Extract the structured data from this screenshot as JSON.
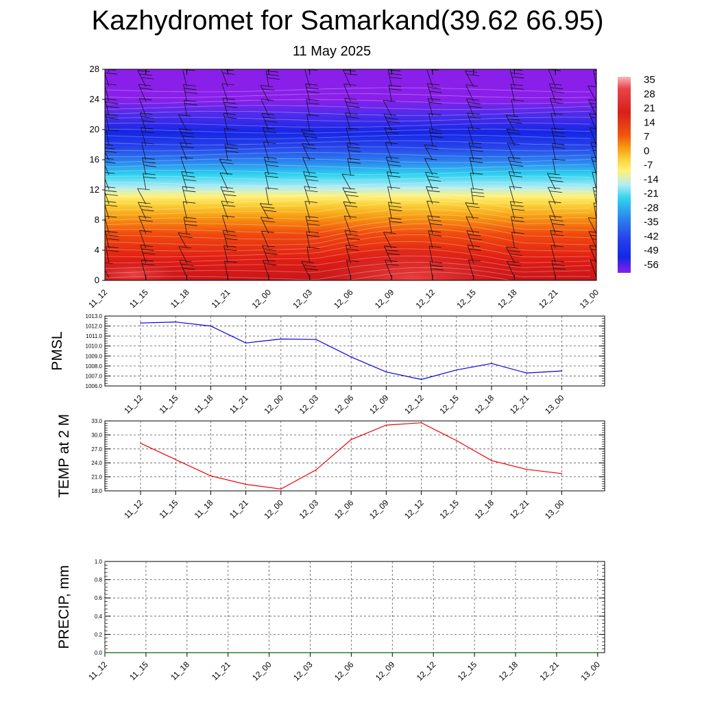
{
  "title": "Kazhydromet for Samarkand(39.62 66.95)",
  "subtitle": "11 May 2025",
  "chart_data": [
    {
      "type": "heatmap",
      "name": "vertical temperature cross-section with wind barbs",
      "x_tick_labels": [
        "11_12",
        "11_15",
        "11_18",
        "11_21",
        "12_00",
        "12_03",
        "12_06",
        "12_09",
        "12_12",
        "12_15",
        "12_18",
        "12_21",
        "13_00"
      ],
      "y_ticks": [
        0,
        4,
        8,
        12,
        16,
        20,
        24,
        28
      ],
      "ylim": [
        0,
        28
      ],
      "colorbar_labels": [
        "35",
        "28",
        "21",
        "14",
        "7",
        "0",
        "-7",
        "-14",
        "-21",
        "-28",
        "-35",
        "-42",
        "-49",
        "-56"
      ],
      "colorbar_range": [
        -60,
        38
      ],
      "colors": {
        "cold": "#8a1fea",
        "blue": "#1526e6",
        "cyan": "#2fd3ef",
        "yellow": "#fff27a",
        "orange": "#f79a10",
        "red": "#e01d14",
        "darkred": "#c8161b"
      }
    },
    {
      "type": "line",
      "ylabel": "PMSL",
      "x_tick_labels": [
        "11_12",
        "11_15",
        "11_18",
        "11_21",
        "12_00",
        "12_03",
        "12_06",
        "12_09",
        "12_12",
        "12_15",
        "12_18",
        "12_21",
        "13_00"
      ],
      "y_tick_labels": [
        "1013.0",
        "1012.0",
        "1011.0",
        "1010.0",
        "1009.0",
        "1008.0",
        "1007.0",
        "1006.0"
      ],
      "ylim": [
        1006.0,
        1013.0
      ],
      "series": [
        {
          "color": "#0000dd",
          "values": [
            1012.3,
            1012.4,
            1012.0,
            1010.3,
            1010.7,
            1010.65,
            1008.9,
            1007.4,
            1006.65,
            1007.6,
            1008.25,
            1007.3,
            1007.5
          ]
        }
      ]
    },
    {
      "type": "line",
      "ylabel": "TEMP at 2 M",
      "x_tick_labels": [
        "11_12",
        "11_15",
        "11_18",
        "11_21",
        "12_00",
        "12_03",
        "12_06",
        "12_09",
        "12_12",
        "12_15",
        "12_18",
        "12_21",
        "13_00"
      ],
      "y_tick_labels": [
        "33.0",
        "30.0",
        "27.0",
        "24.0",
        "21.0",
        "18.0"
      ],
      "ylim": [
        18.0,
        33.0
      ],
      "series": [
        {
          "color": "#ee0000",
          "values": [
            28.2,
            24.7,
            21.2,
            19.4,
            18.4,
            22.5,
            29.0,
            32.1,
            32.6,
            28.8,
            24.5,
            22.6,
            21.7
          ]
        }
      ]
    },
    {
      "type": "line",
      "ylabel": "PRECIP, mm",
      "x_tick_labels": [
        "11_12",
        "11_15",
        "11_18",
        "11_21",
        "12_00",
        "12_03",
        "12_06",
        "12_09",
        "12_12",
        "12_15",
        "12_18",
        "12_21",
        "13_00"
      ],
      "y_tick_labels": [
        "1.0",
        "0.8",
        "0.6",
        "0.4",
        "0.2",
        "0.0"
      ],
      "ylim": [
        0.0,
        1.0
      ],
      "series": [
        {
          "color": "#006600",
          "values": [
            0,
            0,
            0,
            0,
            0,
            0,
            0,
            0,
            0,
            0,
            0,
            0,
            0
          ]
        }
      ]
    }
  ]
}
